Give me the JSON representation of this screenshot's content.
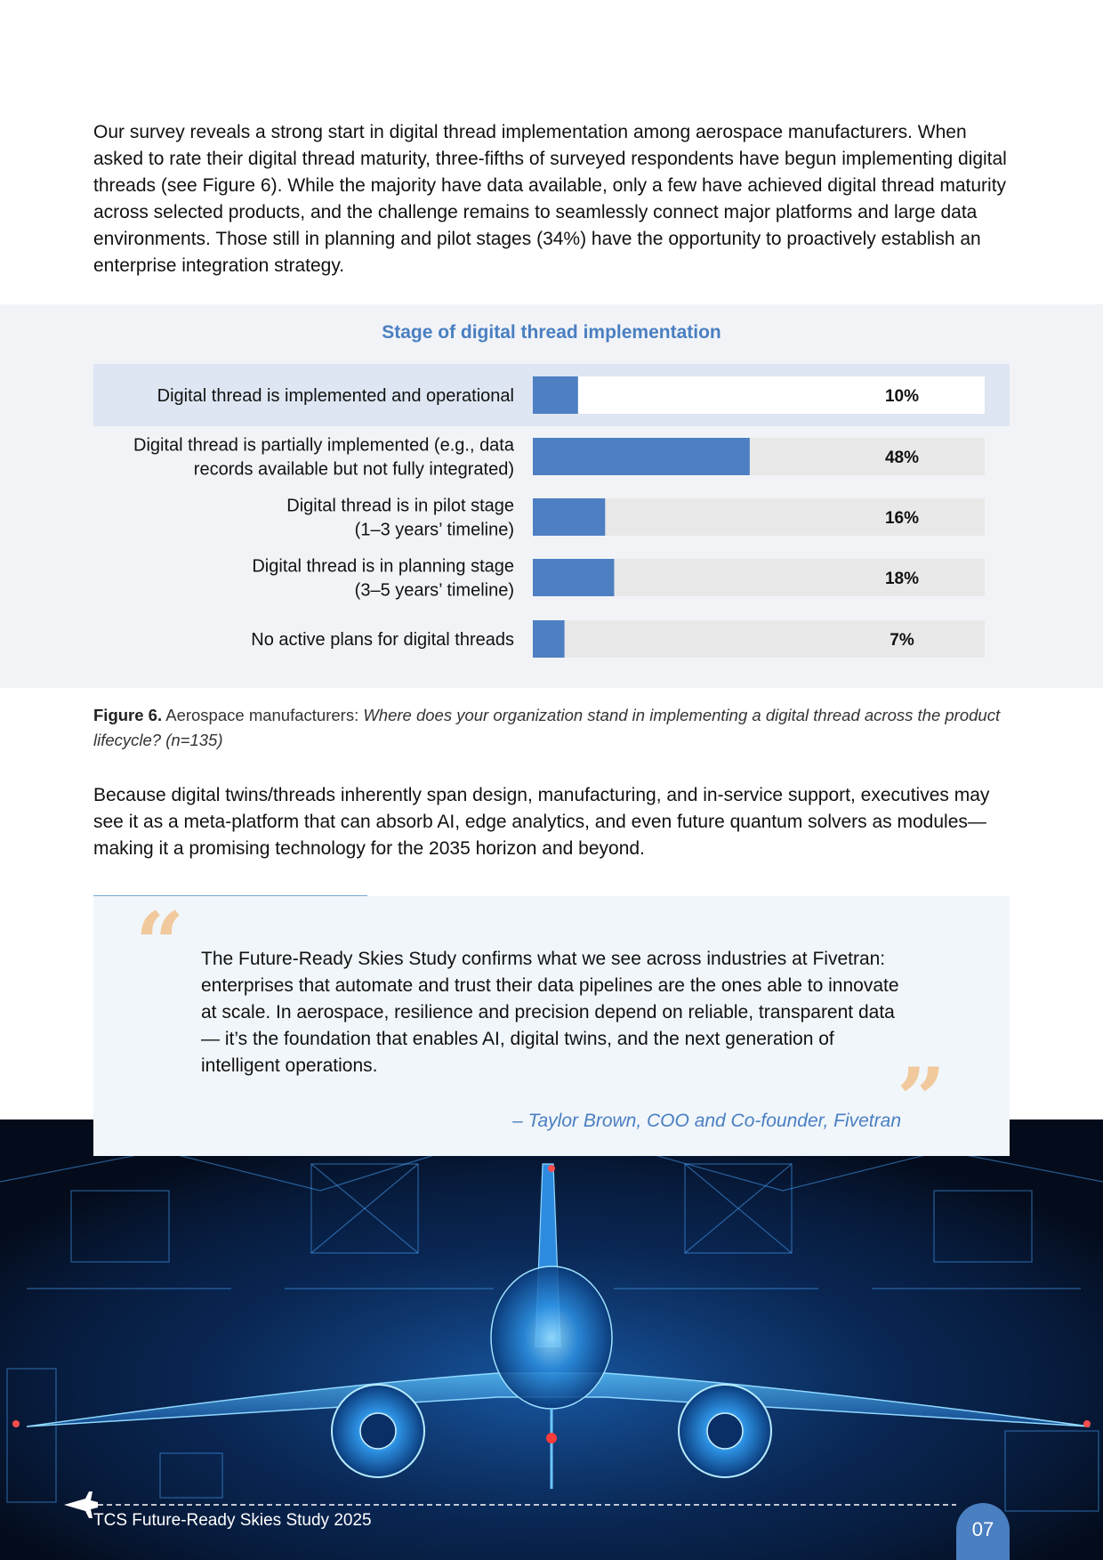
{
  "intro_paragraph": "Our survey reveals a strong start in digital thread implementation among aerospace manufacturers. When asked to rate their digital thread maturity, three-fifths of surveyed respondents have begun implementing digital threads (see Figure 6). While the majority have data available, only a few have achieved digital thread maturity across selected products, and the challenge remains to seamlessly connect major platforms and large data environments. Those still in planning and pilot stages (34%) have the opportunity to proactively establish an enterprise integration strategy.",
  "chart_data": {
    "type": "bar",
    "orientation": "horizontal",
    "title": "Stage of digital thread implementation",
    "categories": [
      [
        "Digital thread is implemented and operational"
      ],
      [
        "Digital thread is partially implemented (e.g., data",
        "records available but not fully integrated)"
      ],
      [
        "Digital thread is in pilot stage",
        "(1–3 years’ timeline)"
      ],
      [
        "Digital thread is in planning stage",
        "(3–5 years’ timeline)"
      ],
      [
        "No active plans for digital threads"
      ]
    ],
    "values": [
      10,
      48,
      16,
      18,
      7
    ],
    "value_labels": [
      "10%",
      "48%",
      "16%",
      "18%",
      "7%"
    ],
    "value_max": 100,
    "highlighted_index": 0,
    "bar_color": "#4d7fc2",
    "track_color": "#e8e8e8",
    "highlight_row_color": "#dde6f2"
  },
  "caption": {
    "label": "Figure 6.",
    "prefix": "Aerospace manufacturers:",
    "question": "Where does your organization stand in implementing a digital thread across the product lifecycle? (n=135)"
  },
  "second_paragraph": "Because digital twins/threads inherently span design, manufacturing, and in-service support, executives may see it as a meta-platform that can absorb AI, edge analytics, and even future quantum solvers as modules—making it a promising technology for the 2035 horizon and beyond.",
  "quote": {
    "open_mark": "“",
    "close_mark": "”",
    "text": "The Future-Ready Skies Study confirms what we see across industries at Fivetran: enterprises that automate and trust their data pipelines are the ones able to innovate at scale. In aerospace, resilience and precision depend on reliable, transparent data — it’s the foundation that enables AI, digital twins, and the next generation of intelligent operations.",
    "attribution": "– Taylor Brown, COO and Co-founder, Fivetran"
  },
  "footer": {
    "title": "TCS Future-Ready Skies Study 2025",
    "page_number": "07"
  },
  "colors": {
    "accent": "#4a7fc1",
    "quote_mark": "#f1c99c",
    "hero_background": "#040c1c"
  }
}
